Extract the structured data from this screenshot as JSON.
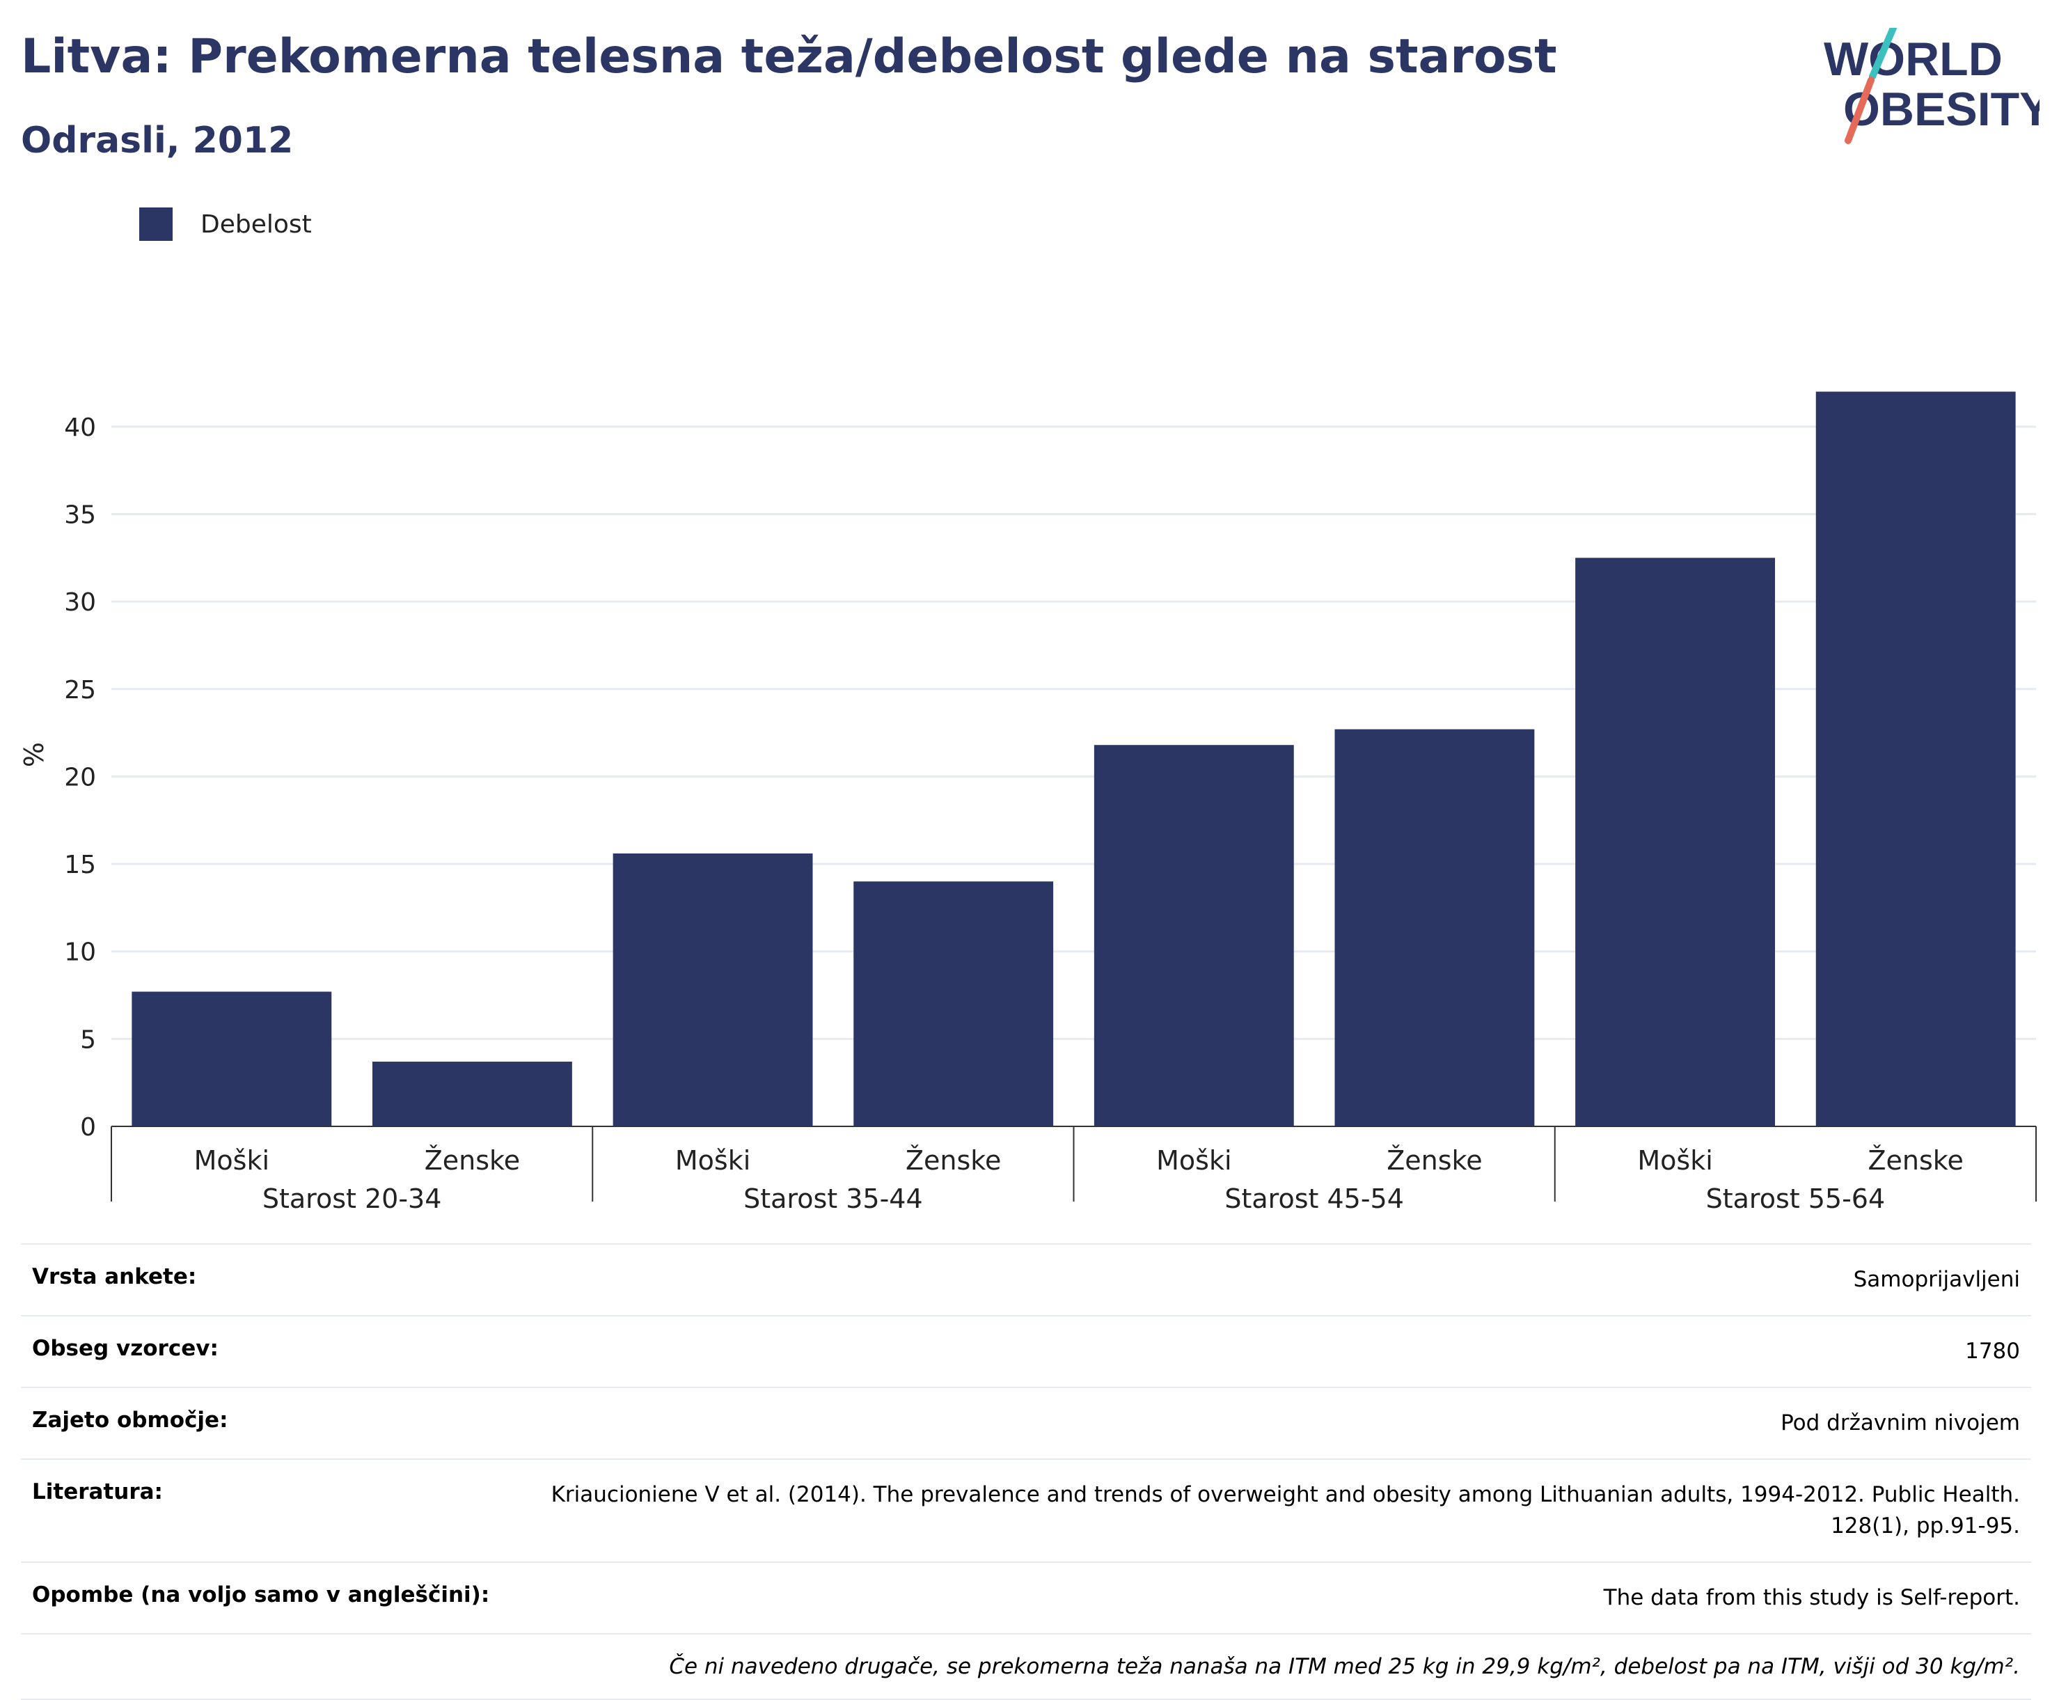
{
  "header": {
    "title": "Litva: Prekomerna telesna teža/debelost glede na starost",
    "subtitle": "Odrasli, 2012"
  },
  "logo": {
    "line1": "WORLD",
    "line2": "OBESITY"
  },
  "colors": {
    "bar": "#2b3664",
    "grid": "#e6eaf2",
    "brand_teal": "#3bbfbf",
    "brand_coral": "#e56a5a"
  },
  "legend": {
    "label": "Debelost"
  },
  "chart_data": {
    "type": "bar",
    "ylabel": "%",
    "ylim": [
      0,
      42.5
    ],
    "yticks": [
      0,
      5,
      10,
      15,
      20,
      25,
      30,
      35,
      40
    ],
    "grid": true,
    "legend_position": "top-left",
    "groups": [
      "Starost 20-34",
      "Starost 35-44",
      "Starost 45-54",
      "Starost 55-64"
    ],
    "subcategories": [
      "Moški",
      "Ženske"
    ],
    "series": [
      {
        "name": "Debelost",
        "values": [
          7.7,
          3.7,
          15.6,
          14.0,
          21.8,
          22.7,
          32.5,
          42.0
        ]
      }
    ]
  },
  "info": [
    {
      "label": "Vrsta ankete:",
      "value": "Samoprijavljeni"
    },
    {
      "label": "Obseg vzorcev:",
      "value": "1780"
    },
    {
      "label": "Zajeto območje:",
      "value": "Pod državnim nivojem"
    },
    {
      "label": "Literatura:",
      "value": "Kriaucioniene V et al. (2014). The prevalence and trends of overweight and obesity among Lithuanian adults, 1994-2012. Public Health. 128(1), pp.91-95."
    },
    {
      "label": "Opombe (na voljo samo v angleščini):",
      "value": "The data from this study is Self-report."
    }
  ],
  "footnote": "Če ni navedeno drugače, se prekomerna teža nanaša na ITM med 25 kg in 29,9 kg/m², debelost pa na ITM, višji od 30 kg/m²."
}
